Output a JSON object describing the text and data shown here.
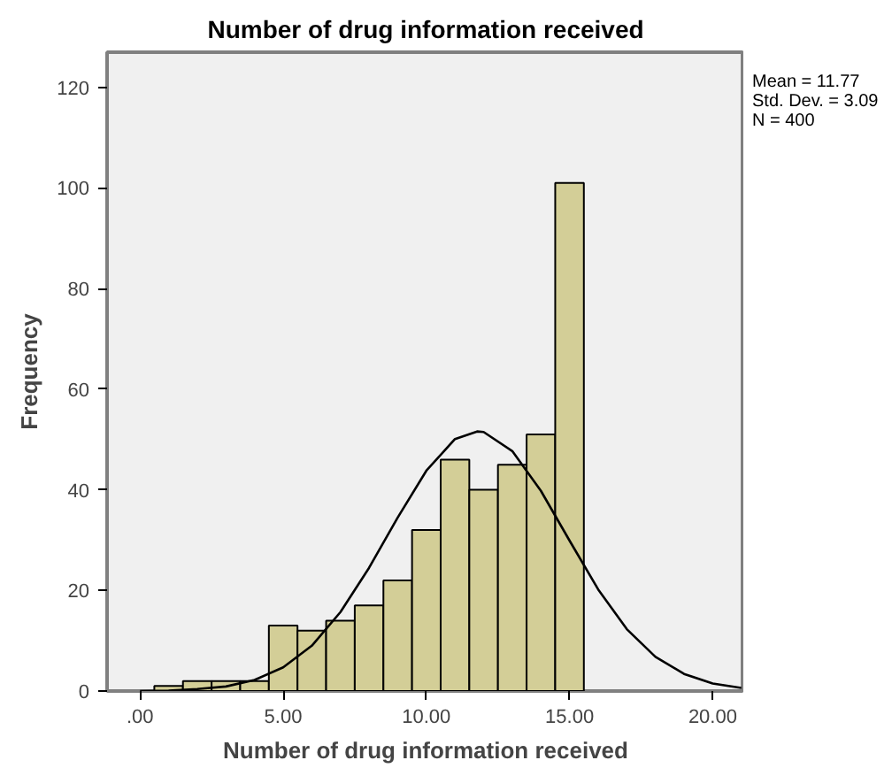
{
  "chart_data": {
    "type": "histogram",
    "title": "Number of drug information received",
    "xlabel": "Number of drug information received",
    "ylabel": "Frequency",
    "annotations": [
      "Mean = 11.77",
      "Std. Dev. = 3.09",
      "N = 400"
    ],
    "series": [
      {
        "color": "#d3ce97",
        "bins": [
          0.5,
          1.5,
          2.5,
          3.5,
          4.5,
          5.5,
          6.5,
          7.5,
          8.5,
          9.5,
          10.5,
          11.5,
          12.5,
          13.5,
          14.5,
          15.5
        ],
        "values": [
          1,
          2,
          2,
          2,
          13,
          12,
          14,
          17,
          22,
          32,
          46,
          40,
          45,
          51,
          101
        ]
      },
      {
        "type": "line",
        "color": "#000000",
        "x": [
          0,
          1,
          2,
          3,
          4,
          5,
          6,
          7,
          8,
          9,
          10,
          11,
          11.77,
          12,
          13,
          14,
          15,
          16,
          17,
          18,
          19,
          20,
          21
        ],
        "values": [
          0,
          0.1,
          0.4,
          0.9,
          2.2,
          4.7,
          9.0,
          15.7,
          24.5,
          34.5,
          43.8,
          50.1,
          51.6,
          51.5,
          47.7,
          39.8,
          29.9,
          20.2,
          12.3,
          6.8,
          3.4,
          1.5,
          0.6
        ]
      }
    ],
    "xlim": [
      -1.15,
      21.1
    ],
    "ylim": [
      0,
      127
    ],
    "xticks": [
      {
        "value": 0,
        "label": ".00"
      },
      {
        "value": 5,
        "label": "5.00"
      },
      {
        "value": 10,
        "label": "10.00"
      },
      {
        "value": 15,
        "label": "15.00"
      },
      {
        "value": 20,
        "label": "20.00"
      }
    ],
    "yticks": [
      0,
      20,
      40,
      60,
      80,
      100,
      120
    ],
    "grid": false
  }
}
